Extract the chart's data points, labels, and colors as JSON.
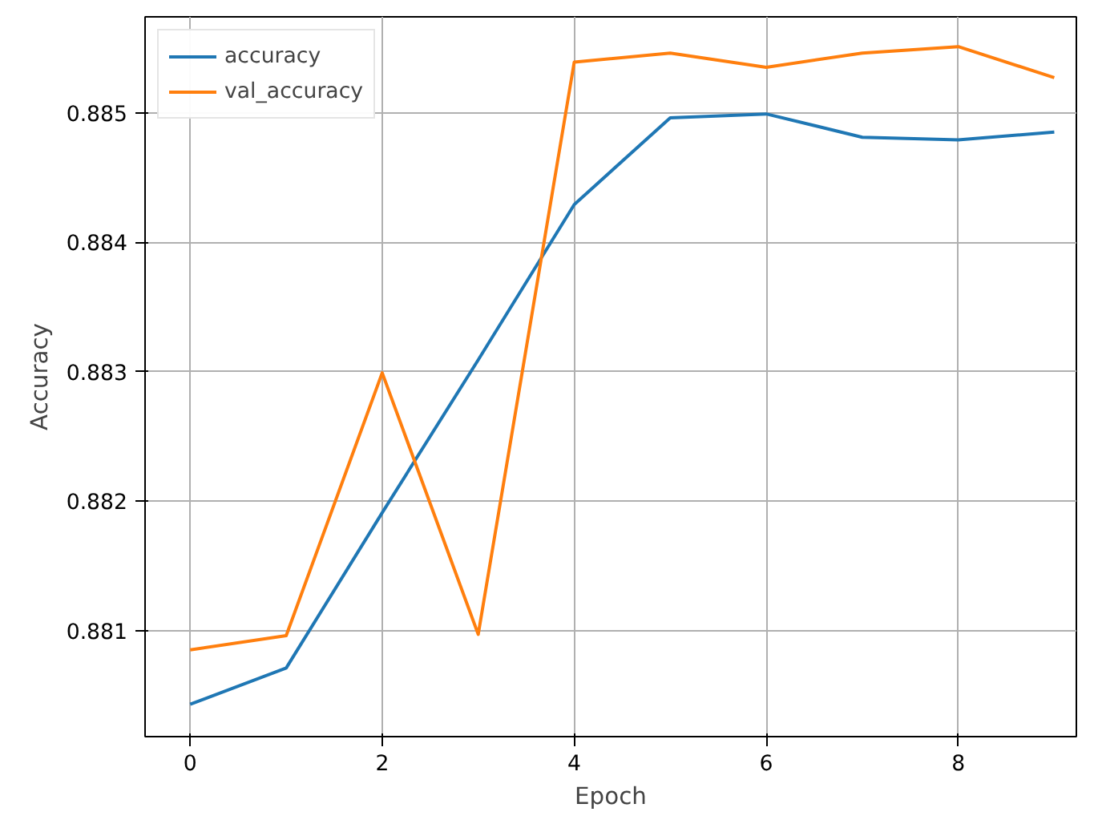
{
  "chart_data": {
    "type": "line",
    "xlabel": "Epoch",
    "ylabel": "Accuracy",
    "x": [
      0,
      1,
      2,
      3,
      4,
      5,
      6,
      7,
      8,
      9
    ],
    "series": [
      {
        "name": "accuracy",
        "color": "#1f77b4",
        "values": [
          0.88043,
          0.88071,
          0.88191,
          0.88309,
          0.88429,
          0.88496,
          0.88499,
          0.88481,
          0.88479,
          0.88485
        ]
      },
      {
        "name": "val_accuracy",
        "color": "#ff7f0e",
        "values": [
          0.88085,
          0.88096,
          0.88299,
          0.88097,
          0.88539,
          0.88546,
          0.88535,
          0.88546,
          0.88551,
          0.88527
        ]
      }
    ],
    "xlim": [
      -0.47,
      9.23
    ],
    "ylim": [
      0.88018,
      0.88574
    ],
    "xticks": [
      0,
      2,
      4,
      6,
      8
    ],
    "yticks": [
      0.881,
      0.882,
      0.883,
      0.884,
      0.885
    ],
    "grid": true,
    "legend": "top left"
  }
}
